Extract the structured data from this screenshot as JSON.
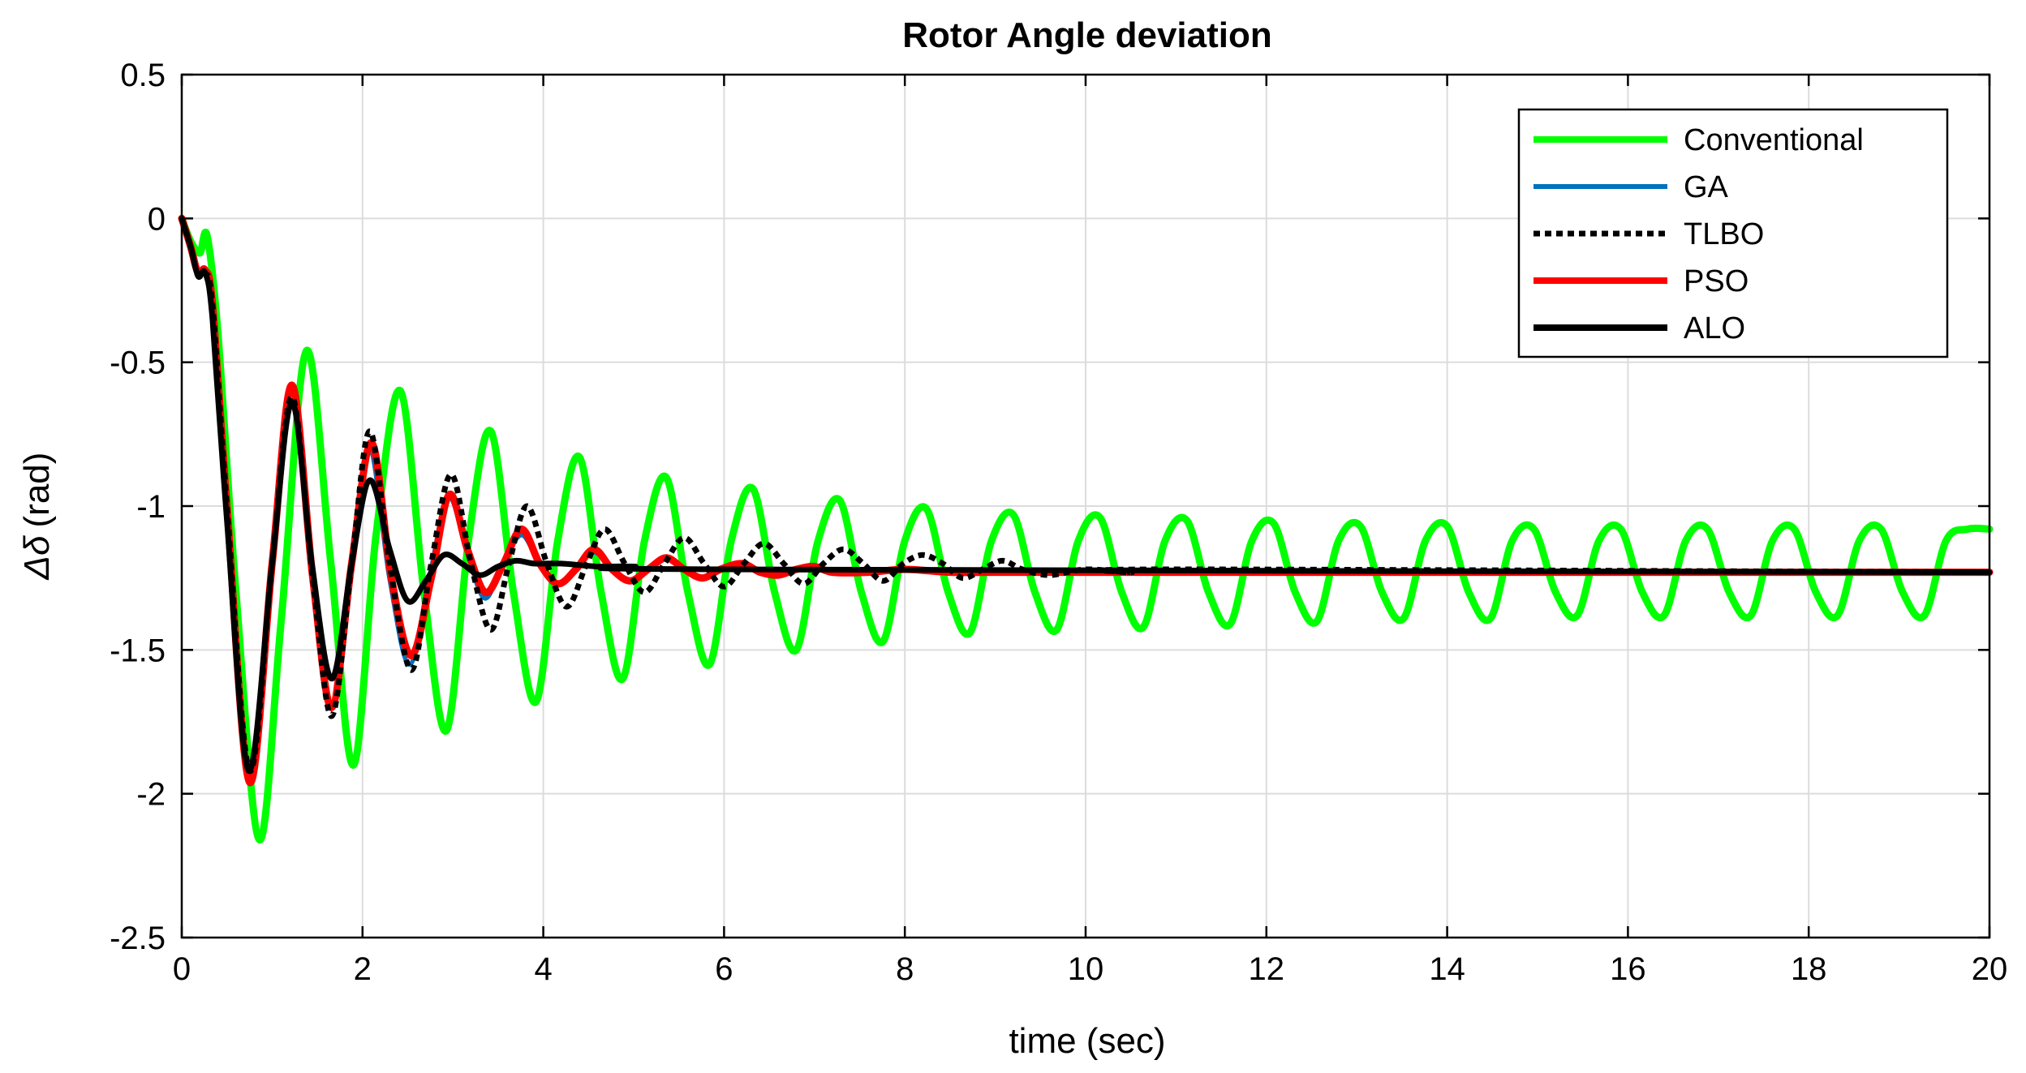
{
  "chart_data": {
    "type": "line",
    "title": "Rotor Angle deviation",
    "xlabel": "time (sec)",
    "ylabel_symbol": "Δδ",
    "ylabel_unit": "(rad)",
    "xlim": [
      0,
      20
    ],
    "ylim": [
      -2.5,
      0.5
    ],
    "xticks": [
      0,
      2,
      4,
      6,
      8,
      10,
      12,
      14,
      16,
      18,
      20
    ],
    "yticks": [
      0.5,
      0,
      -0.5,
      -1,
      -1.5,
      -2,
      -2.5
    ],
    "xtick_labels": [
      "0",
      "2",
      "4",
      "6",
      "8",
      "10",
      "12",
      "14",
      "16",
      "18",
      "20"
    ],
    "ytick_labels": [
      "0.5",
      "0",
      "-0.5",
      "-1",
      "-1.5",
      "-2",
      "-2.5"
    ],
    "grid": true,
    "legend_position": "top-right",
    "series": [
      {
        "name": "Conventional",
        "color": "#00ff00",
        "style": "solid",
        "final_value": -1.23,
        "x": [
          0,
          0.1,
          0.2,
          0.28,
          0.4,
          0.6,
          0.86,
          1.1,
          1.38,
          1.65,
          1.9,
          2.15,
          2.42,
          2.68,
          2.93,
          3.18,
          3.42,
          3.67,
          3.92,
          4.16,
          4.4,
          4.64,
          4.88,
          5.12,
          5.36,
          5.6,
          5.84,
          6.08,
          6.32,
          6.56,
          6.8,
          7.04,
          7.28,
          7.52,
          7.76,
          8.0,
          8.24,
          8.48,
          8.72,
          8.96,
          9.2,
          9.44,
          9.68,
          9.92,
          10.16,
          10.4,
          10.64,
          10.88,
          11.12,
          11.36,
          11.6,
          11.84,
          12.08,
          12.32,
          12.56,
          12.8,
          13.04,
          13.28,
          13.52,
          13.76,
          14.0,
          14.24,
          14.48,
          14.72,
          14.96,
          15.2,
          15.44,
          15.68,
          15.92,
          16.16,
          16.4,
          16.64,
          16.88,
          17.12,
          17.36,
          17.6,
          17.84,
          18.08,
          18.32,
          18.56,
          18.8,
          19.04,
          19.28,
          19.52,
          19.76,
          20.0
        ],
        "y": [
          0,
          -0.08,
          -0.12,
          -0.06,
          -0.4,
          -1.3,
          -2.16,
          -1.4,
          -0.46,
          -1.2,
          -1.9,
          -1.1,
          -0.6,
          -1.3,
          -1.78,
          -1.1,
          -0.74,
          -1.3,
          -1.68,
          -1.12,
          -0.83,
          -1.3,
          -1.6,
          -1.12,
          -0.9,
          -1.3,
          -1.55,
          -1.12,
          -0.94,
          -1.3,
          -1.5,
          -1.12,
          -0.98,
          -1.3,
          -1.47,
          -1.12,
          -1.01,
          -1.3,
          -1.44,
          -1.12,
          -1.03,
          -1.3,
          -1.43,
          -1.12,
          -1.04,
          -1.3,
          -1.42,
          -1.12,
          -1.05,
          -1.3,
          -1.41,
          -1.12,
          -1.06,
          -1.3,
          -1.4,
          -1.12,
          -1.07,
          -1.3,
          -1.39,
          -1.12,
          -1.07,
          -1.3,
          -1.39,
          -1.12,
          -1.08,
          -1.3,
          -1.38,
          -1.12,
          -1.08,
          -1.3,
          -1.38,
          -1.12,
          -1.08,
          -1.3,
          -1.38,
          -1.12,
          -1.08,
          -1.3,
          -1.38,
          -1.12,
          -1.08,
          -1.3,
          -1.38,
          -1.12,
          -1.08,
          -1.08
        ]
      },
      {
        "name": "GA",
        "color": "#0072bd",
        "style": "solid",
        "final_value": -1.23,
        "x": [
          0,
          0.1,
          0.18,
          0.26,
          0.34,
          0.5,
          0.75,
          1.0,
          1.22,
          1.45,
          1.66,
          1.88,
          2.08,
          2.3,
          2.52,
          2.74,
          2.95,
          3.15,
          3.35,
          3.55,
          3.76,
          3.96,
          4.16,
          4.36,
          4.56,
          4.76,
          4.96,
          5.16,
          5.36,
          5.56,
          5.76,
          5.96,
          6.2,
          6.4,
          6.6,
          6.8,
          7.0,
          7.2,
          7.6,
          8.0,
          8.5,
          9.0,
          9.5,
          10.0,
          20.0
        ],
        "y": [
          0,
          -0.1,
          -0.2,
          -0.19,
          -0.3,
          -1.0,
          -1.93,
          -1.2,
          -0.6,
          -1.25,
          -1.7,
          -1.2,
          -0.8,
          -1.25,
          -1.55,
          -1.25,
          -0.97,
          -1.15,
          -1.32,
          -1.2,
          -1.1,
          -1.2,
          -1.27,
          -1.22,
          -1.16,
          -1.22,
          -1.26,
          -1.22,
          -1.18,
          -1.22,
          -1.25,
          -1.22,
          -1.2,
          -1.23,
          -1.24,
          -1.22,
          -1.21,
          -1.23,
          -1.23,
          -1.22,
          -1.23,
          -1.23,
          -1.23,
          -1.23,
          -1.23
        ]
      },
      {
        "name": "TLBO",
        "color": "#000000",
        "style": "dotted",
        "final_value": -1.23,
        "x": [
          0,
          0.1,
          0.18,
          0.26,
          0.34,
          0.5,
          0.75,
          1.0,
          1.22,
          1.45,
          1.66,
          1.88,
          2.08,
          2.3,
          2.54,
          2.76,
          2.98,
          3.2,
          3.42,
          3.62,
          3.82,
          4.04,
          4.26,
          4.48,
          4.68,
          4.9,
          5.12,
          5.34,
          5.56,
          5.78,
          6.0,
          6.22,
          6.44,
          6.66,
          6.88,
          7.1,
          7.32,
          7.54,
          7.76,
          7.98,
          8.2,
          8.42,
          8.64,
          8.86,
          9.08,
          9.3,
          9.6,
          10.0,
          10.5,
          11.0,
          20.0
        ],
        "y": [
          0,
          -0.1,
          -0.2,
          -0.19,
          -0.3,
          -1.0,
          -1.92,
          -1.2,
          -0.62,
          -1.25,
          -1.73,
          -1.2,
          -0.74,
          -1.2,
          -1.57,
          -1.2,
          -0.89,
          -1.2,
          -1.43,
          -1.2,
          -1.0,
          -1.2,
          -1.35,
          -1.2,
          -1.08,
          -1.2,
          -1.3,
          -1.2,
          -1.11,
          -1.2,
          -1.28,
          -1.2,
          -1.13,
          -1.2,
          -1.27,
          -1.2,
          -1.15,
          -1.2,
          -1.26,
          -1.2,
          -1.17,
          -1.2,
          -1.25,
          -1.22,
          -1.19,
          -1.22,
          -1.24,
          -1.22,
          -1.23,
          -1.22,
          -1.23
        ]
      },
      {
        "name": "PSO",
        "color": "#ff0000",
        "style": "solid",
        "final_value": -1.23,
        "x": [
          0,
          0.1,
          0.18,
          0.26,
          0.34,
          0.5,
          0.75,
          1.0,
          1.22,
          1.45,
          1.66,
          1.88,
          2.1,
          2.32,
          2.54,
          2.76,
          2.96,
          3.16,
          3.36,
          3.56,
          3.76,
          3.96,
          4.16,
          4.36,
          4.56,
          4.76,
          4.96,
          5.16,
          5.36,
          5.56,
          5.76,
          5.96,
          6.2,
          6.4,
          6.6,
          6.8,
          7.0,
          7.2,
          7.6,
          8.0,
          8.5,
          9.0,
          10.0,
          20.0
        ],
        "y": [
          0,
          -0.1,
          -0.19,
          -0.18,
          -0.3,
          -1.0,
          -1.96,
          -1.2,
          -0.58,
          -1.25,
          -1.7,
          -1.2,
          -0.78,
          -1.25,
          -1.52,
          -1.25,
          -0.96,
          -1.15,
          -1.3,
          -1.2,
          -1.08,
          -1.2,
          -1.27,
          -1.22,
          -1.15,
          -1.22,
          -1.26,
          -1.22,
          -1.18,
          -1.22,
          -1.25,
          -1.22,
          -1.2,
          -1.23,
          -1.24,
          -1.22,
          -1.21,
          -1.23,
          -1.23,
          -1.22,
          -1.23,
          -1.23,
          -1.23,
          -1.23
        ]
      },
      {
        "name": "ALO",
        "color": "#000000",
        "style": "solid",
        "final_value": -1.23,
        "x": [
          0,
          0.1,
          0.18,
          0.26,
          0.34,
          0.5,
          0.74,
          1.0,
          1.22,
          1.44,
          1.66,
          1.88,
          2.08,
          2.3,
          2.5,
          2.7,
          2.9,
          3.1,
          3.3,
          3.5,
          3.7,
          3.9,
          4.2,
          4.6,
          5.0,
          6.0,
          20.0
        ],
        "y": [
          0,
          -0.1,
          -0.2,
          -0.19,
          -0.35,
          -1.05,
          -1.92,
          -1.2,
          -0.64,
          -1.2,
          -1.6,
          -1.2,
          -0.91,
          -1.15,
          -1.33,
          -1.26,
          -1.17,
          -1.2,
          -1.24,
          -1.21,
          -1.19,
          -1.2,
          -1.2,
          -1.21,
          -1.21,
          -1.22,
          -1.23
        ]
      }
    ]
  }
}
